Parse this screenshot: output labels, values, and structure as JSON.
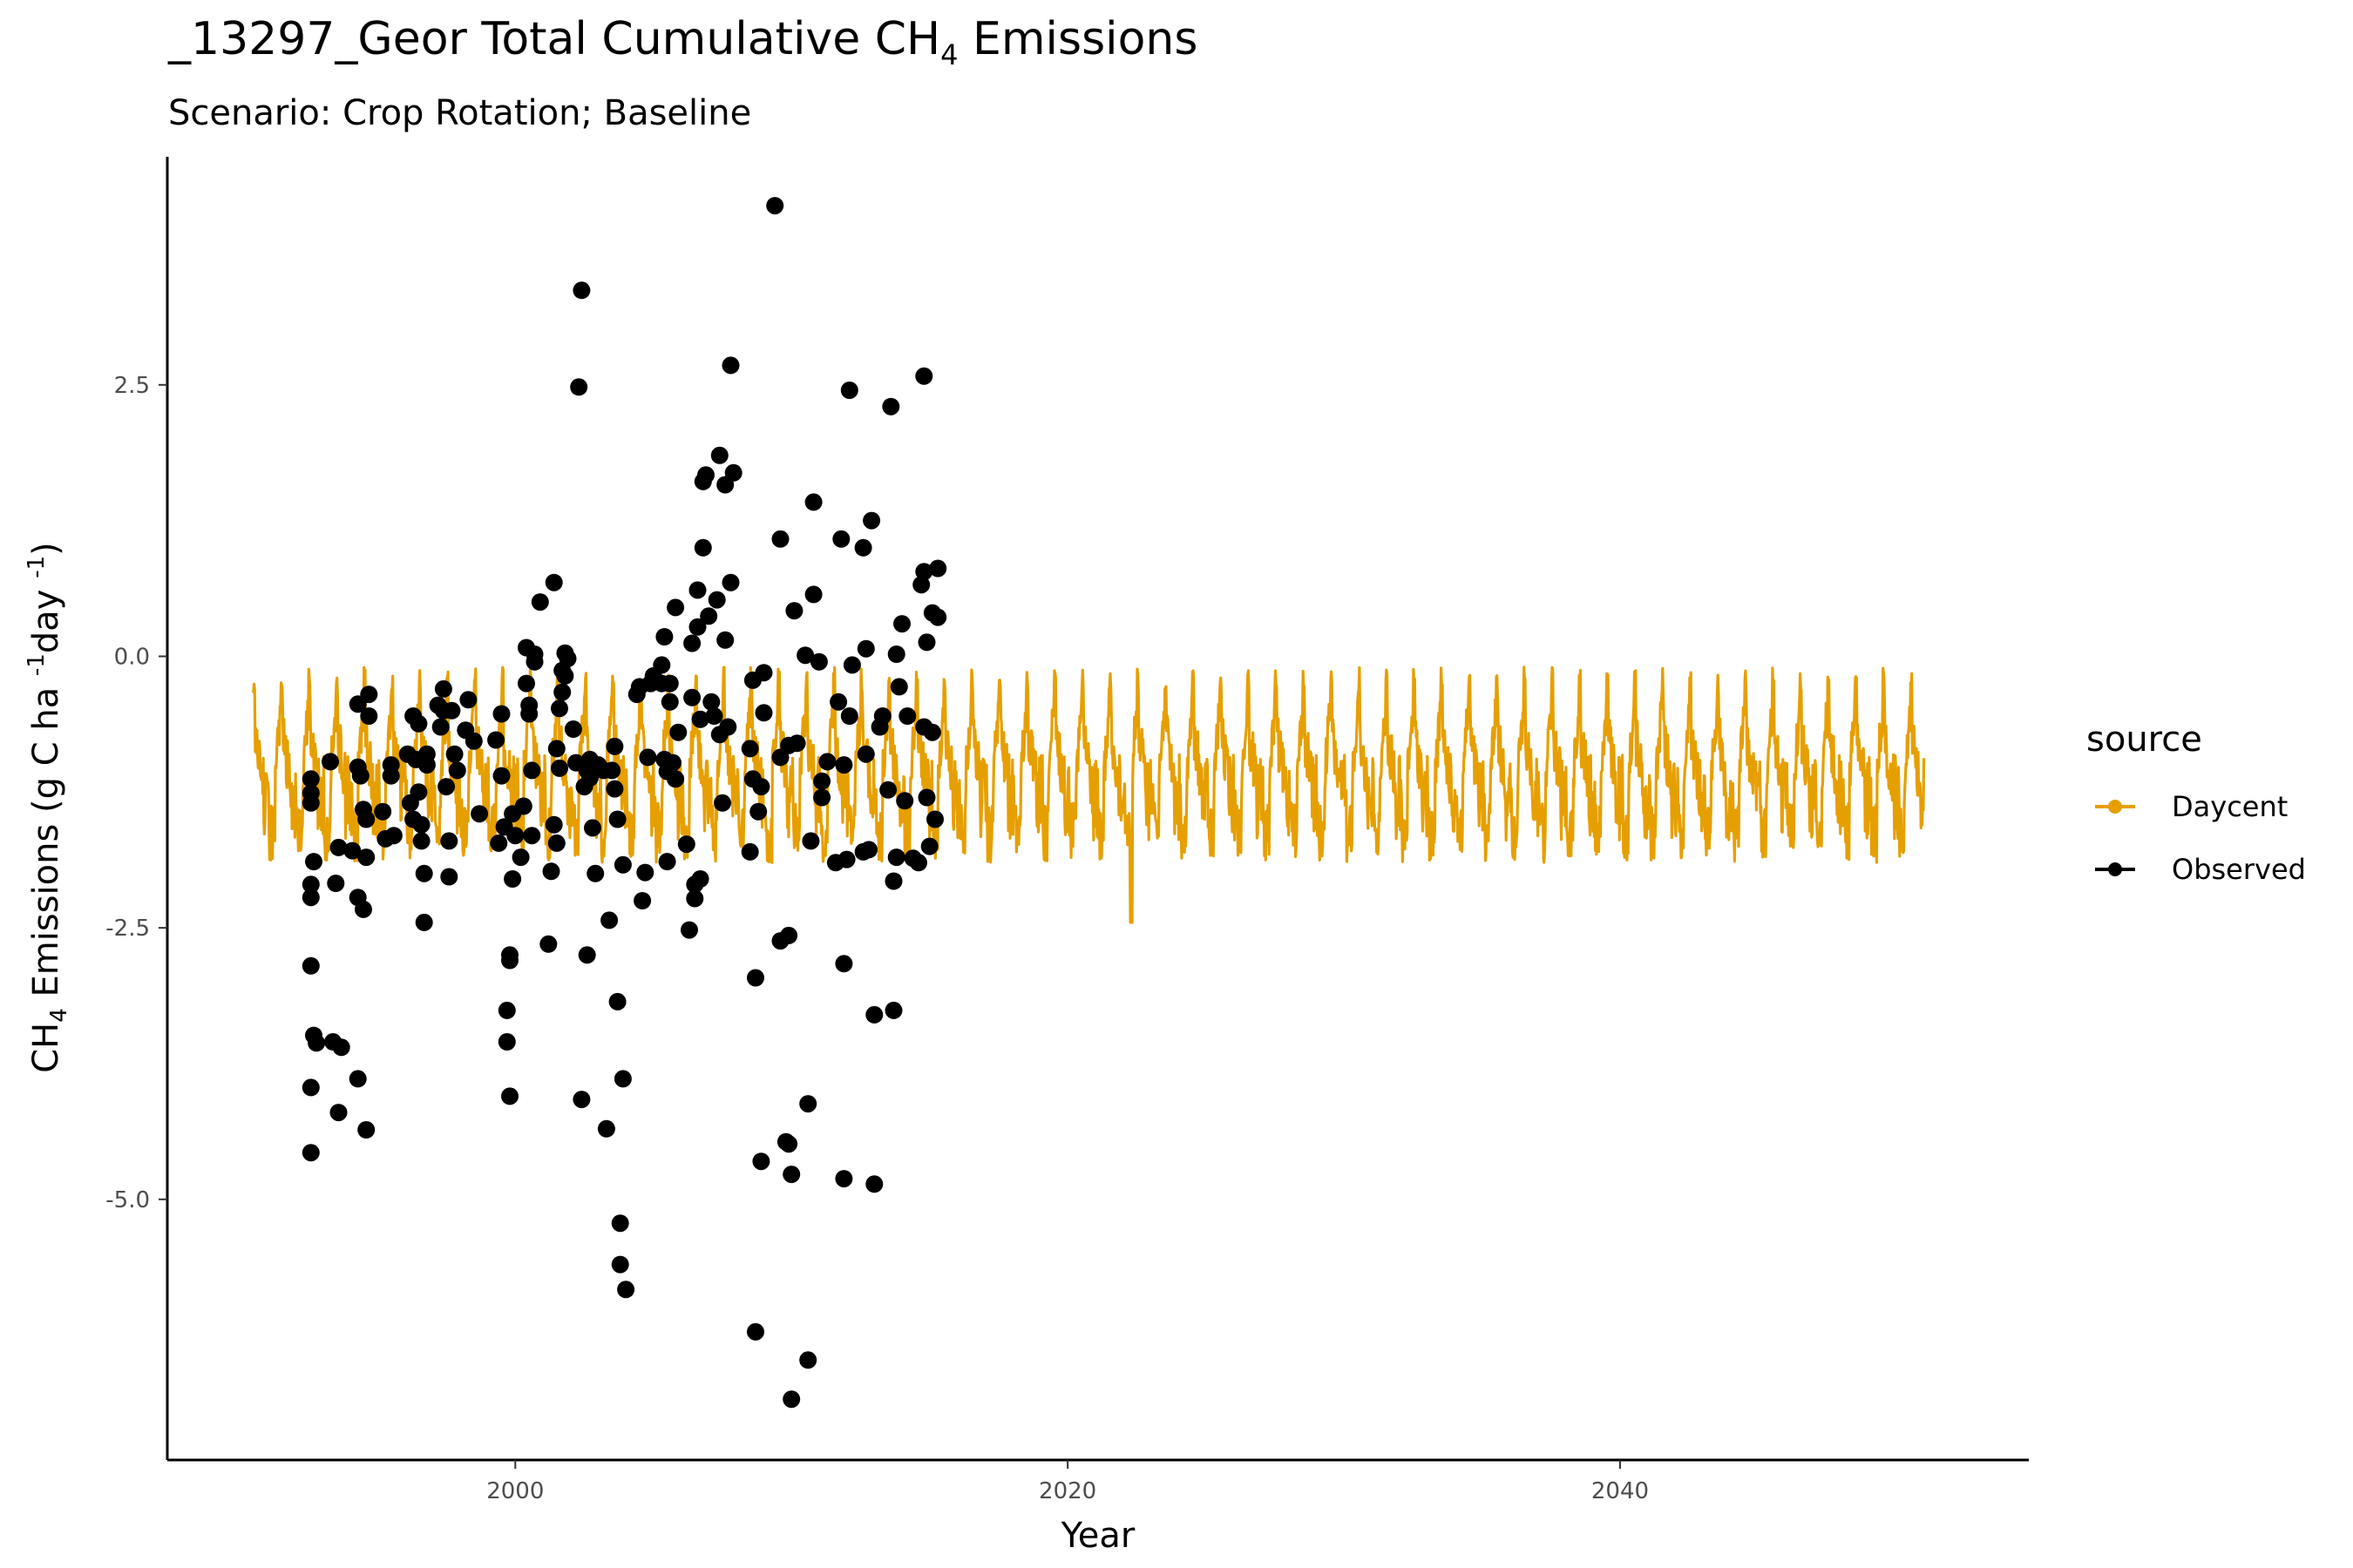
{
  "colors": {
    "daycent": "#E69F00",
    "observed": "#000000",
    "axis": "#000000",
    "tick_text": "#4d4d4d"
  },
  "chart_data": {
    "type": "line",
    "title_prefix": "_13297_Geor Total Cumulative CH",
    "title_sub": "4",
    "title_suffix": " Emissions",
    "subtitle": "Scenario: Crop Rotation; Baseline",
    "xlabel": "Year",
    "ylabel_parts": {
      "a": "CH",
      "a_sub": "4",
      "b": " Emissions (g C ha ",
      "b_sup": "-1",
      "c": "day ",
      "c_sup": "-1",
      "d": ")"
    },
    "xlim": [
      1987.4,
      2054.8
    ],
    "ylim": [
      -7.4,
      4.6
    ],
    "x_ticks": [
      2000,
      2020,
      2040
    ],
    "x_tick_labels": [
      "2000",
      "2020",
      "2040"
    ],
    "y_ticks": [
      -5.0,
      -2.5,
      0.0,
      2.5
    ],
    "y_tick_labels": [
      "-5.0",
      "-2.5",
      "0.0",
      "2.5"
    ],
    "grid": false,
    "legend_title": "source",
    "legend_position": "right",
    "series": [
      {
        "name": "Daycent",
        "kind": "line",
        "x_range": [
          1990.5,
          2051.0
        ],
        "cycle_years": 1.0,
        "min": -1.9,
        "max": -0.1,
        "note_extreme": {
          "x": 2022.3,
          "min": -2.45
        }
      },
      {
        "name": "Observed",
        "kind": "points",
        "points": [
          [
            1992.6,
            -2.85
          ],
          [
            1992.6,
            -3.97
          ],
          [
            1992.6,
            -4.57
          ],
          [
            1992.7,
            -3.49
          ],
          [
            1992.8,
            -3.56
          ],
          [
            1992.6,
            -2.22
          ],
          [
            1992.6,
            -2.1
          ],
          [
            1992.7,
            -1.89
          ],
          [
            1992.6,
            -1.13
          ],
          [
            1992.6,
            -1.35
          ],
          [
            1992.6,
            -1.26
          ],
          [
            1993.4,
            -3.55
          ],
          [
            1993.5,
            -2.09
          ],
          [
            1993.3,
            -0.97
          ],
          [
            1993.7,
            -3.6
          ],
          [
            1993.6,
            -4.2
          ],
          [
            1993.6,
            -1.76
          ],
          [
            1994.1,
            -1.79
          ],
          [
            1994.3,
            -3.89
          ],
          [
            1994.3,
            -2.22
          ],
          [
            1994.3,
            -1.02
          ],
          [
            1994.4,
            -1.1
          ],
          [
            1994.3,
            -0.44
          ],
          [
            1994.5,
            -2.33
          ],
          [
            1994.5,
            -1.41
          ],
          [
            1994.6,
            -1.85
          ],
          [
            1994.6,
            -1.5
          ],
          [
            1994.6,
            -4.36
          ],
          [
            1994.7,
            -0.35
          ],
          [
            1994.7,
            -0.55
          ],
          [
            1995.2,
            -1.43
          ],
          [
            1995.3,
            -1.68
          ],
          [
            1995.5,
            -1.1
          ],
          [
            1995.5,
            -1.0
          ],
          [
            1995.6,
            -1.65
          ],
          [
            1996.1,
            -0.9
          ],
          [
            1996.2,
            -1.35
          ],
          [
            1996.3,
            -1.5
          ],
          [
            1996.3,
            -0.55
          ],
          [
            1996.4,
            -0.95
          ],
          [
            1996.5,
            -0.62
          ],
          [
            1996.5,
            -1.25
          ],
          [
            1996.6,
            -1.55
          ],
          [
            1996.6,
            -1.7
          ],
          [
            1996.7,
            -2.45
          ],
          [
            1996.7,
            -2.0
          ],
          [
            1996.8,
            -0.9
          ],
          [
            1996.8,
            -1.0
          ],
          [
            1997.2,
            -0.45
          ],
          [
            1997.3,
            -0.65
          ],
          [
            1997.4,
            -0.3
          ],
          [
            1997.4,
            -0.5
          ],
          [
            1997.5,
            -1.2
          ],
          [
            1997.6,
            -1.7
          ],
          [
            1997.6,
            -2.03
          ],
          [
            1997.7,
            -0.5
          ],
          [
            1997.8,
            -0.9
          ],
          [
            1997.9,
            -1.05
          ],
          [
            1998.2,
            -0.68
          ],
          [
            1998.3,
            -0.4
          ],
          [
            1998.5,
            -0.78
          ],
          [
            1998.7,
            -1.45
          ],
          [
            1999.3,
            -0.77
          ],
          [
            1999.4,
            -1.72
          ],
          [
            1999.5,
            -0.53
          ],
          [
            1999.5,
            -1.1
          ],
          [
            1999.6,
            -1.57
          ],
          [
            1999.7,
            -3.55
          ],
          [
            1999.7,
            -3.26
          ],
          [
            1999.8,
            -4.05
          ],
          [
            1999.8,
            -2.75
          ],
          [
            1999.8,
            -2.8
          ],
          [
            1999.9,
            -2.05
          ],
          [
            1999.9,
            -1.45
          ],
          [
            2000.0,
            -1.65
          ],
          [
            2000.2,
            -1.85
          ],
          [
            2000.3,
            -1.38
          ],
          [
            2000.4,
            -0.25
          ],
          [
            2000.4,
            0.08
          ],
          [
            2000.5,
            -0.45
          ],
          [
            2000.5,
            -0.53
          ],
          [
            2000.6,
            -1.65
          ],
          [
            2000.6,
            -1.05
          ],
          [
            2000.7,
            -0.05
          ],
          [
            2000.7,
            0.02
          ],
          [
            2000.9,
            0.5
          ],
          [
            2001.2,
            -2.65
          ],
          [
            2001.3,
            -1.98
          ],
          [
            2001.4,
            -1.55
          ],
          [
            2001.4,
            0.68
          ],
          [
            2001.5,
            -1.72
          ],
          [
            2001.5,
            -0.85
          ],
          [
            2001.6,
            -1.03
          ],
          [
            2001.6,
            -0.48
          ],
          [
            2001.7,
            -0.33
          ],
          [
            2001.7,
            -0.13
          ],
          [
            2001.8,
            0.03
          ],
          [
            2001.8,
            -0.18
          ],
          [
            2001.9,
            -0.02
          ],
          [
            2002.1,
            -0.67
          ],
          [
            2002.2,
            -0.98
          ],
          [
            2002.3,
            2.48
          ],
          [
            2002.4,
            3.37
          ],
          [
            2002.4,
            -4.08
          ],
          [
            2002.5,
            -1.2
          ],
          [
            2002.6,
            -2.75
          ],
          [
            2002.6,
            -1.05
          ],
          [
            2002.7,
            -0.95
          ],
          [
            2002.7,
            -1.12
          ],
          [
            2002.8,
            -1.58
          ],
          [
            2002.9,
            -2.0
          ],
          [
            2003.0,
            -1.0
          ],
          [
            2003.2,
            -1.05
          ],
          [
            2003.3,
            -4.35
          ],
          [
            2003.4,
            -2.43
          ],
          [
            2003.5,
            -1.05
          ],
          [
            2003.6,
            -1.22
          ],
          [
            2003.6,
            -0.83
          ],
          [
            2003.7,
            -3.18
          ],
          [
            2003.7,
            -1.5
          ],
          [
            2003.8,
            -5.6
          ],
          [
            2003.8,
            -5.22
          ],
          [
            2003.9,
            -3.89
          ],
          [
            2003.9,
            -1.92
          ],
          [
            2004.0,
            -5.83
          ],
          [
            2004.4,
            -0.35
          ],
          [
            2004.5,
            -0.28
          ],
          [
            2004.6,
            -2.25
          ],
          [
            2004.7,
            -1.99
          ],
          [
            2004.8,
            -0.93
          ],
          [
            2004.9,
            -0.25
          ],
          [
            2005.0,
            -0.18
          ],
          [
            2005.3,
            -0.25
          ],
          [
            2005.3,
            -0.08
          ],
          [
            2005.4,
            0.18
          ],
          [
            2005.4,
            -0.95
          ],
          [
            2005.5,
            -1.06
          ],
          [
            2005.5,
            -1.89
          ],
          [
            2005.6,
            -0.25
          ],
          [
            2005.6,
            -0.42
          ],
          [
            2005.7,
            -0.98
          ],
          [
            2005.8,
            -1.13
          ],
          [
            2005.8,
            0.45
          ],
          [
            2005.9,
            -0.7
          ],
          [
            2006.2,
            -1.73
          ],
          [
            2006.3,
            -2.52
          ],
          [
            2006.4,
            0.12
          ],
          [
            2006.4,
            -0.38
          ],
          [
            2006.5,
            -2.23
          ],
          [
            2006.5,
            -2.1
          ],
          [
            2006.6,
            0.27
          ],
          [
            2006.6,
            0.61
          ],
          [
            2006.7,
            -2.05
          ],
          [
            2006.7,
            -0.58
          ],
          [
            2006.8,
            1.61
          ],
          [
            2006.8,
            1.0
          ],
          [
            2006.9,
            1.67
          ],
          [
            2007.0,
            0.37
          ],
          [
            2007.1,
            -0.42
          ],
          [
            2007.2,
            -0.55
          ],
          [
            2007.3,
            0.52
          ],
          [
            2007.4,
            1.85
          ],
          [
            2007.4,
            -0.72
          ],
          [
            2007.5,
            -1.35
          ],
          [
            2007.6,
            0.15
          ],
          [
            2007.6,
            1.58
          ],
          [
            2007.7,
            -0.65
          ],
          [
            2007.8,
            0.68
          ],
          [
            2007.9,
            1.69
          ],
          [
            2007.8,
            2.68
          ],
          [
            2008.5,
            -1.8
          ],
          [
            2008.5,
            -0.85
          ],
          [
            2008.6,
            -1.13
          ],
          [
            2008.6,
            -0.22
          ],
          [
            2008.7,
            -6.22
          ],
          [
            2008.7,
            -2.96
          ],
          [
            2008.8,
            -1.43
          ],
          [
            2008.9,
            -4.65
          ],
          [
            2008.9,
            -1.2
          ],
          [
            2009.0,
            -0.15
          ],
          [
            2009.0,
            -0.52
          ],
          [
            2009.4,
            4.15
          ],
          [
            2009.6,
            -0.93
          ],
          [
            2009.6,
            -2.62
          ],
          [
            2009.6,
            1.08
          ],
          [
            2009.8,
            -4.47
          ],
          [
            2009.9,
            -2.57
          ],
          [
            2009.9,
            -0.82
          ],
          [
            2009.9,
            -4.49
          ],
          [
            2010.0,
            -6.84
          ],
          [
            2010.0,
            -4.77
          ],
          [
            2010.1,
            0.42
          ],
          [
            2010.2,
            -0.8
          ],
          [
            2010.5,
            0.01
          ],
          [
            2010.6,
            -4.12
          ],
          [
            2010.6,
            -6.48
          ],
          [
            2010.7,
            -1.7
          ],
          [
            2010.8,
            0.57
          ],
          [
            2010.8,
            1.42
          ],
          [
            2011.0,
            -0.05
          ],
          [
            2011.1,
            -1.3
          ],
          [
            2011.1,
            -1.15
          ],
          [
            2011.3,
            -0.97
          ],
          [
            2011.6,
            -1.9
          ],
          [
            2011.7,
            -0.42
          ],
          [
            2011.8,
            1.08
          ],
          [
            2011.9,
            -1.0
          ],
          [
            2011.9,
            -2.83
          ],
          [
            2011.9,
            -4.81
          ],
          [
            2012.0,
            -1.87
          ],
          [
            2012.1,
            2.45
          ],
          [
            2012.1,
            -0.55
          ],
          [
            2012.2,
            -0.08
          ],
          [
            2012.6,
            -1.8
          ],
          [
            2012.6,
            1.0
          ],
          [
            2012.7,
            0.07
          ],
          [
            2012.7,
            -0.9
          ],
          [
            2012.8,
            -1.78
          ],
          [
            2012.9,
            1.25
          ],
          [
            2013.0,
            -3.3
          ],
          [
            2013.0,
            -4.86
          ],
          [
            2013.2,
            -0.65
          ],
          [
            2013.3,
            -0.55
          ],
          [
            2013.5,
            -1.23
          ],
          [
            2013.6,
            2.3
          ],
          [
            2013.7,
            -3.26
          ],
          [
            2013.7,
            -2.07
          ],
          [
            2013.8,
            -1.85
          ],
          [
            2013.8,
            0.02
          ],
          [
            2013.9,
            -0.28
          ],
          [
            2014.0,
            0.3
          ],
          [
            2014.1,
            -1.33
          ],
          [
            2014.2,
            -0.55
          ],
          [
            2014.4,
            -1.86
          ],
          [
            2014.6,
            -1.9
          ],
          [
            2014.7,
            0.66
          ],
          [
            2014.8,
            0.78
          ],
          [
            2014.8,
            -0.65
          ],
          [
            2014.8,
            2.58
          ],
          [
            2014.9,
            -1.3
          ],
          [
            2014.9,
            0.13
          ],
          [
            2015.0,
            -1.75
          ],
          [
            2015.1,
            -0.7
          ],
          [
            2015.1,
            0.4
          ],
          [
            2015.2,
            -1.5
          ],
          [
            2015.3,
            0.36
          ],
          [
            2015.3,
            0.81
          ]
        ]
      }
    ]
  }
}
